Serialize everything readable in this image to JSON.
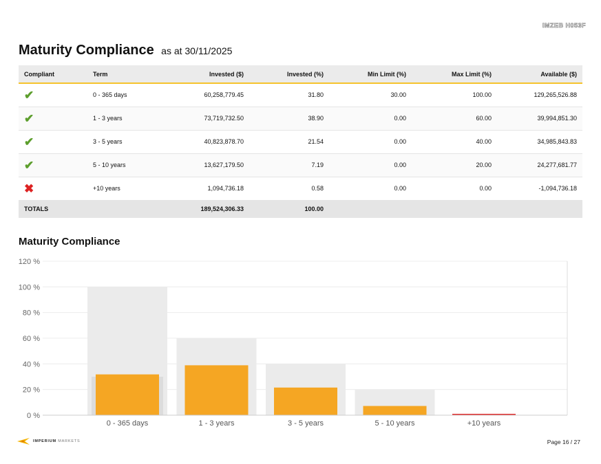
{
  "doc_code": "IMZEB H053F",
  "heading": {
    "title": "Maturity Compliance",
    "subtitle": "as at 30/11/2025"
  },
  "table": {
    "headers": [
      "Compliant",
      "Term",
      "Invested ($)",
      "Invested (%)",
      "Min Limit (%)",
      "Max Limit (%)",
      "Available ($)"
    ],
    "rows": [
      {
        "compliant": true,
        "icon": "check-icon",
        "term": "0 - 365 days",
        "invested": "60,258,779.45",
        "invested_pct": "31.80",
        "min": "30.00",
        "max": "100.00",
        "available": "129,265,526.88"
      },
      {
        "compliant": true,
        "icon": "check-icon",
        "term": "1 - 3 years",
        "invested": "73,719,732.50",
        "invested_pct": "38.90",
        "min": "0.00",
        "max": "60.00",
        "available": "39,994,851.30"
      },
      {
        "compliant": true,
        "icon": "check-icon",
        "term": "3 - 5 years",
        "invested": "40,823,878.70",
        "invested_pct": "21.54",
        "min": "0.00",
        "max": "40.00",
        "available": "34,985,843.83"
      },
      {
        "compliant": true,
        "icon": "check-icon",
        "term": "5 - 10 years",
        "invested": "13,627,179.50",
        "invested_pct": "7.19",
        "min": "0.00",
        "max": "20.00",
        "available": "24,277,681.77"
      },
      {
        "compliant": false,
        "icon": "cross-icon",
        "term": "+10 years",
        "invested": "1,094,736.18",
        "invested_pct": "0.58",
        "min": "0.00",
        "max": "0.00",
        "available": "-1,094,736.18"
      }
    ],
    "totals": {
      "label": "TOTALS",
      "invested": "189,524,306.33",
      "invested_pct": "100.00"
    }
  },
  "chart_title": "Maturity Compliance",
  "chart_data": {
    "type": "bar",
    "categories": [
      "0 - 365 days",
      "1 - 3 years",
      "3 - 5 years",
      "5 - 10 years",
      "+10 years"
    ],
    "series": [
      {
        "values": [
          31.8,
          38.9,
          21.54,
          7.19,
          0.58
        ],
        "color": "#f5a623"
      },
      {
        "values": [
          100,
          60,
          40,
          20,
          0
        ],
        "color": "#ebebeb"
      },
      {
        "values": [
          30,
          0,
          0,
          0,
          0
        ],
        "color": "#dcdcdc"
      }
    ],
    "noncompliant_color": "#e03131",
    "ylim": [
      0,
      120
    ],
    "yticks": [
      0,
      20,
      40,
      60,
      80,
      100,
      120
    ],
    "ytick_suffix": " %",
    "grid": true
  },
  "footer": {
    "logo_primary": "IMPERIUM",
    "logo_secondary": "MARKETS",
    "page": "Page 16 / 27"
  },
  "colors": {
    "accent": "#f5c22b",
    "check": "#5c9e2c",
    "cross": "#dd2222"
  }
}
